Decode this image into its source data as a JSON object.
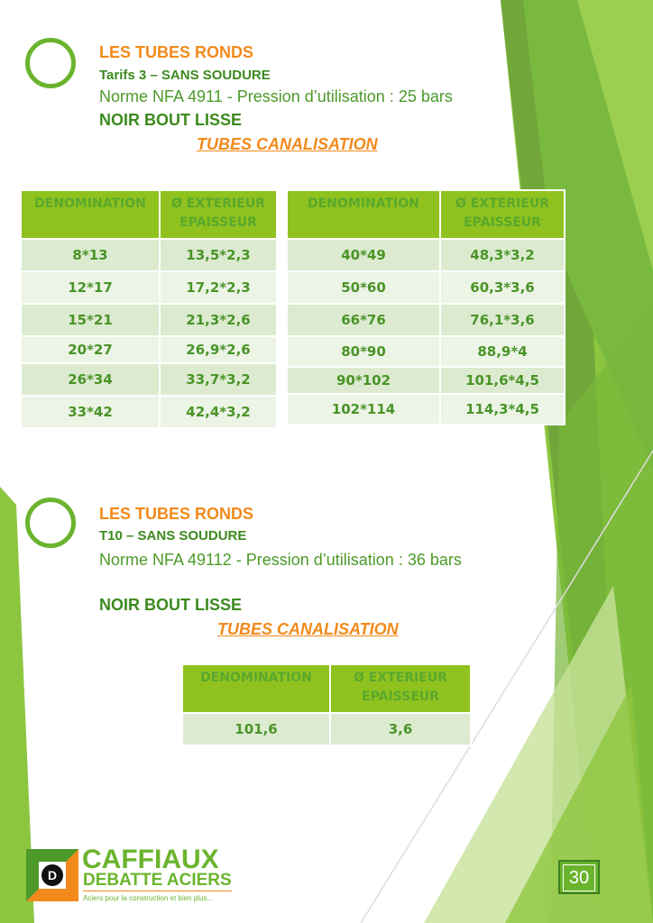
{
  "section1": {
    "title": "LES TUBES RONDS",
    "subtitle": "Tarifs 3 – SANS SOUDURE",
    "norm": "Norme NFA 4911 - Pression d’utilisation : 25 bars",
    "finish": "NOIR BOUT LISSE",
    "category": "TUBES CANALISATION",
    "table_left": {
      "headers": [
        "DENOMINATION",
        "Ø EXTERIEUR EPAISSEUR"
      ],
      "rows": [
        [
          "8*13",
          "13,5*2,3"
        ],
        [
          "12*17",
          "17,2*2,3"
        ],
        [
          "15*21",
          "21,3*2,6"
        ],
        [
          "20*27",
          "26,9*2,6"
        ],
        [
          "26*34",
          "33,7*3,2"
        ],
        [
          "33*42",
          "42,4*3,2"
        ]
      ]
    },
    "table_right": {
      "headers": [
        "DENOMINATION",
        "Ø EXTERIEUR EPAISSEUR"
      ],
      "rows": [
        [
          "40*49",
          "48,3*3,2"
        ],
        [
          "50*60",
          "60,3*3,6"
        ],
        [
          "66*76",
          "76,1*3,6"
        ],
        [
          "80*90",
          "88,9*4"
        ],
        [
          "90*102",
          "101,6*4,5"
        ],
        [
          "102*114",
          "114,3*4,5"
        ]
      ]
    }
  },
  "section2": {
    "title": "LES TUBES RONDS",
    "subtitle": "T10 – SANS SOUDURE",
    "norm": "Norme NFA 49112 - Pression d’utilisation : 36 bars",
    "finish": "NOIR BOUT LISSE",
    "category": "TUBES CANALISATION",
    "table": {
      "headers": [
        "DENOMINATION",
        "Ø EXTERIEUR EPAISSEUR"
      ],
      "rows": [
        [
          "101,6",
          "3,6"
        ]
      ]
    }
  },
  "footer": {
    "brand_line1": "CAFFIAUX",
    "brand_line2": "DEBATTE ACIERS",
    "tagline": "Aciers pour la construction et bien plus...",
    "page_number": "30"
  },
  "colors": {
    "green": "#6ab42d",
    "orange": "#f28a1b",
    "header_green": "#8fc21f"
  }
}
